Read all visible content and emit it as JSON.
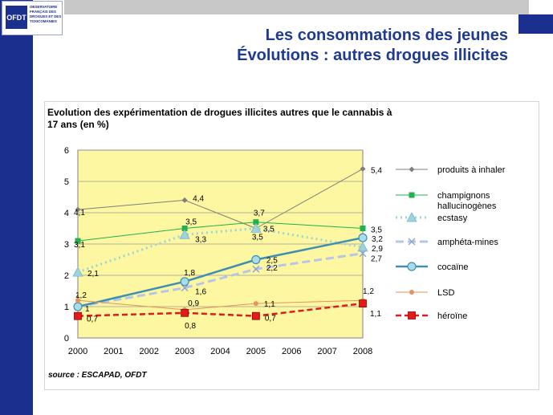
{
  "logo": {
    "mark": "OFDT",
    "text": "OBSERVATOIRE FRANÇAIS DES DROGUES ET DES TOXICOMANIES"
  },
  "slide": {
    "title_line1": "Les consommations des jeunes",
    "title_line2": "Évolutions : autres drogues illicites"
  },
  "source": "source : ESCAPAD, OFDT",
  "colors": {
    "navy": "#1b2f8f",
    "plot_bg": "#fcf7a0",
    "title": "#1f3a93"
  },
  "chart_data": {
    "type": "line",
    "title_line1": "Evolution des expérimentation  de drogues illicites autres  que le cannabis à",
    "title_line2": "17 ans (en %)",
    "x": [
      2000,
      2001,
      2002,
      2003,
      2004,
      2005,
      2006,
      2007,
      2008
    ],
    "ylim": [
      0,
      6
    ],
    "yticks": [
      0,
      1,
      2,
      3,
      4,
      5,
      6
    ],
    "grid": true,
    "legend_position": "right",
    "series": [
      {
        "name": "produits à inhaler",
        "color": "#7f7f7f",
        "marker": "diamond",
        "dash": "",
        "width": 1,
        "points": [
          [
            2000,
            4.1
          ],
          [
            2003,
            4.4
          ],
          [
            2005,
            3.5
          ],
          [
            2008,
            5.4
          ]
        ],
        "labels": [
          "4,1",
          "4,4",
          "3,5",
          "5,4"
        ]
      },
      {
        "name": "champignons hallucinogènes",
        "color": "#22b14c",
        "marker": "square",
        "dash": "",
        "width": 1,
        "points": [
          [
            2000,
            3.1
          ],
          [
            2003,
            3.5
          ],
          [
            2005,
            3.7
          ],
          [
            2008,
            3.5
          ]
        ],
        "labels": [
          "3,1",
          "3,5",
          "3,7",
          "3,5"
        ]
      },
      {
        "name": "ecstasy",
        "color": "#9dd2df",
        "marker": "triangle",
        "dash": "2,4",
        "width": 3,
        "points": [
          [
            2000,
            2.1
          ],
          [
            2003,
            3.3
          ],
          [
            2005,
            3.5
          ],
          [
            2008,
            2.9
          ]
        ],
        "labels": [
          "2,1",
          "3,3",
          "3,5",
          "2,9"
        ]
      },
      {
        "name": "amphéta-mines",
        "color": "#b7c6e8",
        "marker": "x",
        "dash": "10,5",
        "width": 3,
        "points": [
          [
            2000,
            1.0
          ],
          [
            2003,
            1.6
          ],
          [
            2005,
            2.2
          ],
          [
            2008,
            2.7
          ]
        ],
        "labels": [
          "1",
          "1,6",
          "2,2",
          "2,7"
        ]
      },
      {
        "name": "cocaïne",
        "color": "#3f8fb5",
        "marker": "circle",
        "dash": "",
        "width": 2.5,
        "points": [
          [
            2000,
            1.0
          ],
          [
            2003,
            1.8
          ],
          [
            2005,
            2.5
          ],
          [
            2008,
            3.2
          ]
        ],
        "labels": [
          "1",
          "1,8",
          "2,5",
          "3,2"
        ]
      },
      {
        "name": "LSD",
        "color": "#e8915a",
        "marker": "dot",
        "dash": "",
        "width": 1,
        "points": [
          [
            2000,
            1.2
          ],
          [
            2003,
            0.9
          ],
          [
            2005,
            1.1
          ],
          [
            2008,
            1.2
          ]
        ],
        "labels": [
          "1,2",
          "0,9",
          "1,1",
          "1,2"
        ]
      },
      {
        "name": "héroïne",
        "color": "#e01b1b",
        "marker": "cross-square",
        "dash": "7,4",
        "width": 2.5,
        "points": [
          [
            2000,
            0.7
          ],
          [
            2003,
            0.8
          ],
          [
            2005,
            0.7
          ],
          [
            2008,
            1.1
          ]
        ],
        "labels": [
          "0,7",
          "0,8",
          "0,7",
          "1,1"
        ]
      }
    ]
  }
}
